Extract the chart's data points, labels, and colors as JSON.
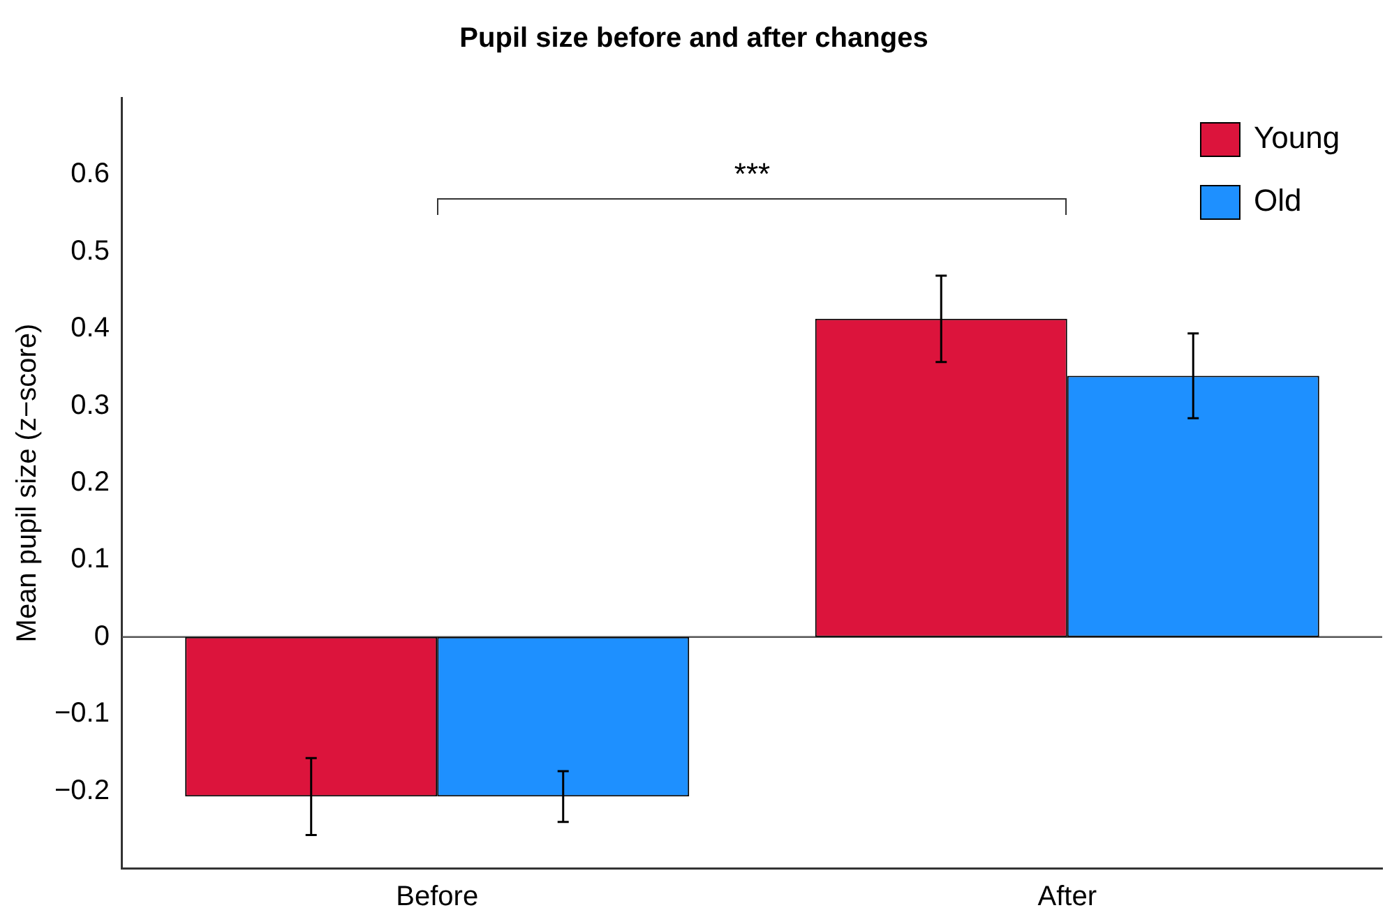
{
  "chart_data": {
    "type": "bar",
    "title": "Pupil size before and after changes",
    "ylabel": "Mean pupil size (z−score)",
    "categories": [
      "Before",
      "After"
    ],
    "series": [
      {
        "name": "Young",
        "color": "#dc143c",
        "values": [
          -0.207,
          0.413
        ],
        "errors": [
          0.05,
          0.056
        ]
      },
      {
        "name": "Old",
        "color": "#1e90ff",
        "values": [
          -0.207,
          0.339
        ],
        "errors": [
          0.033,
          0.055
        ]
      }
    ],
    "ylim": [
      -0.3,
      0.7
    ],
    "yticks": [
      {
        "value": -0.2,
        "label": "−0.2"
      },
      {
        "value": -0.1,
        "label": "−0.1"
      },
      0,
      0.1,
      0.2,
      0.3,
      0.4,
      0.5,
      0.6
    ],
    "ref_lines": [
      {
        "axis": "y",
        "value": 0,
        "color": "#555555"
      }
    ],
    "annotations": [
      "***"
    ],
    "legend": "top right",
    "grid": false
  }
}
